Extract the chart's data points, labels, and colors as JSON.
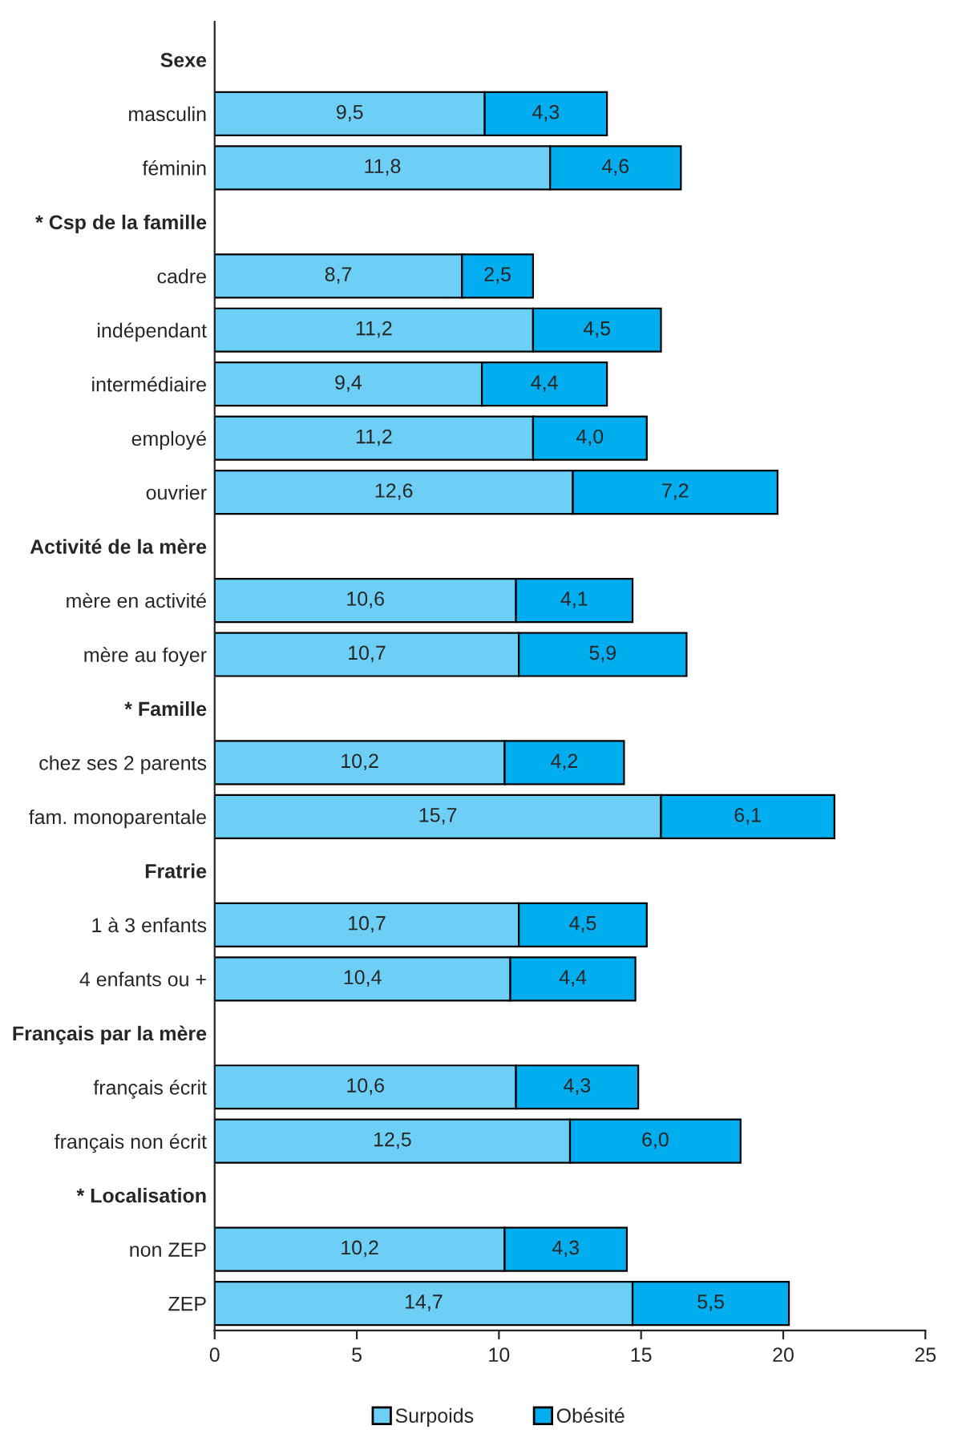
{
  "chart_data": {
    "type": "bar",
    "orientation": "horizontal",
    "stacked": true,
    "categories": [
      "Sexe",
      "masculin",
      "féminin",
      "* Csp de la famille",
      "cadre",
      "indépendant",
      "intermédiaire",
      "employé",
      "ouvrier",
      "Activité de la mère",
      "mère en activité",
      "mère au foyer",
      "* Famille",
      "chez ses 2 parents",
      "fam. monoparentale",
      "Fratrie",
      "1 à 3 enfants",
      "4 enfants ou +",
      "Français par la mère",
      "français écrit",
      "français non écrit",
      "* Localisation",
      "non ZEP",
      "ZEP"
    ],
    "series": [
      {
        "name": "Surpoids",
        "color": "#6dcff6",
        "values": [
          null,
          9.5,
          11.8,
          null,
          8.7,
          11.2,
          9.4,
          11.2,
          12.6,
          null,
          10.6,
          10.7,
          null,
          10.2,
          15.7,
          null,
          10.7,
          10.4,
          null,
          10.6,
          12.5,
          null,
          10.2,
          14.7
        ],
        "value_labels": [
          null,
          "9,5",
          "11,8",
          null,
          "8,7",
          "11,2",
          "9,4",
          "11,2",
          "12,6",
          null,
          "10,6",
          "10,7",
          null,
          "10,2",
          "15,7",
          null,
          "10,7",
          "10,4",
          null,
          "10,6",
          "12,5",
          null,
          "10,2",
          "14,7"
        ]
      },
      {
        "name": "Obésité",
        "color": "#00aeef",
        "values": [
          null,
          4.3,
          4.6,
          null,
          2.5,
          4.5,
          4.4,
          4.0,
          7.2,
          null,
          4.1,
          5.9,
          null,
          4.2,
          6.1,
          null,
          4.5,
          4.4,
          null,
          4.3,
          6.0,
          null,
          4.3,
          5.5
        ],
        "value_labels": [
          null,
          "4,3",
          "4,6",
          null,
          "2,5",
          "4,5",
          "4,4",
          "4,0",
          "7,2",
          null,
          "4,1",
          "5,9",
          null,
          "4,2",
          "6,1",
          null,
          "4,5",
          "4,4",
          null,
          "4,3",
          "6,0",
          null,
          "4,3",
          "5,5"
        ]
      }
    ],
    "xlim": [
      0,
      25
    ],
    "xticks": [
      0,
      5,
      10,
      15,
      20,
      25
    ],
    "grid": false,
    "legend": "bottom"
  }
}
